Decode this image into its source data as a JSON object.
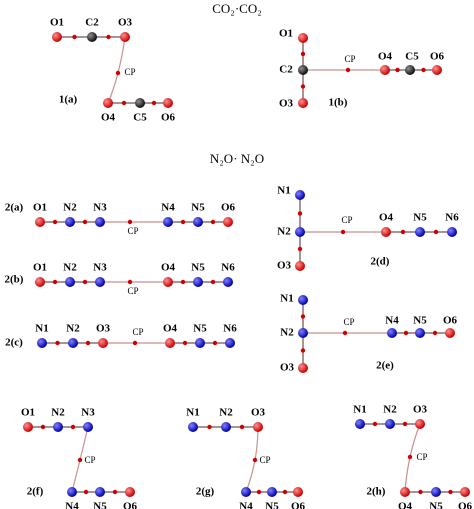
{
  "headings": [
    "CO₂·CO₂",
    "N₂O· N₂O"
  ],
  "complexes": [
    {
      "label": "1(a)",
      "atoms": [
        "O1",
        "C2",
        "O3",
        "O4",
        "C5",
        "O6"
      ],
      "cp": "CP"
    },
    {
      "label": "1(b)",
      "atoms": [
        "O1",
        "C2",
        "O3",
        "O4",
        "C5",
        "O6"
      ],
      "cp": "CP"
    },
    {
      "label": "2(a)",
      "atoms": [
        "O1",
        "N2",
        "N3",
        "N4",
        "N5",
        "O6"
      ],
      "cp": "CP"
    },
    {
      "label": "2(b)",
      "atoms": [
        "O1",
        "N2",
        "N3",
        "O4",
        "N5",
        "N6"
      ],
      "cp": "CP"
    },
    {
      "label": "2(c)",
      "atoms": [
        "N1",
        "N2",
        "O3",
        "O4",
        "N5",
        "N6"
      ],
      "cp": "CP"
    },
    {
      "label": "2(d)",
      "atoms": [
        "N1",
        "N2",
        "O3",
        "O4",
        "N5",
        "N6"
      ],
      "cp": "CP"
    },
    {
      "label": "2(e)",
      "atoms": [
        "N1",
        "N2",
        "O3",
        "N4",
        "N5",
        "O6"
      ],
      "cp": "CP"
    },
    {
      "label": "2(f)",
      "atoms": [
        "O1",
        "N2",
        "N3",
        "N4",
        "N5",
        "O6"
      ],
      "cp": "CP"
    },
    {
      "label": "2(g)",
      "atoms": [
        "N1",
        "N2",
        "O3",
        "N4",
        "N5",
        "O6"
      ],
      "cp": "CP"
    },
    {
      "label": "2(h)",
      "atoms": [
        "N1",
        "N2",
        "O3",
        "O4",
        "N5",
        "O6"
      ],
      "cp": "CP"
    }
  ]
}
